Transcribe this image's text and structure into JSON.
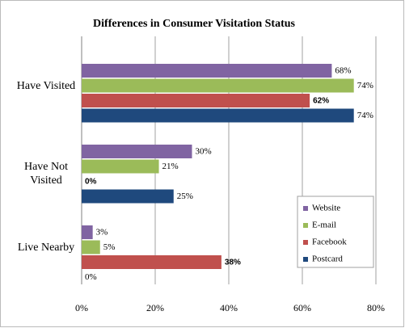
{
  "chart_data": {
    "type": "bar",
    "orientation": "horizontal",
    "title": "Differences in Consumer Visitation Status",
    "categories": [
      "Have Visited",
      "Have Not Visited",
      "Live Nearby"
    ],
    "series": [
      {
        "name": "Website",
        "color": "#8064a2",
        "values": [
          68,
          30,
          3
        ],
        "value_labels": [
          "68%",
          "30%",
          "3%"
        ]
      },
      {
        "name": "E-mail",
        "color": "#9bbb59",
        "values": [
          74,
          21,
          5
        ],
        "value_labels": [
          "74%",
          "21%",
          "5%"
        ]
      },
      {
        "name": "Facebook",
        "color": "#c0504d",
        "values": [
          62,
          0,
          38
        ],
        "value_labels": [
          "62%",
          "0%",
          "38%"
        ]
      },
      {
        "name": "Postcard",
        "color": "#1f497d",
        "values": [
          74,
          25,
          0
        ],
        "value_labels": [
          "74%",
          "25%",
          "0%"
        ]
      }
    ],
    "xlim": [
      0,
      80
    ],
    "xticks": [
      {
        "value": 0,
        "label": "0%"
      },
      {
        "value": 20,
        "label": "20%"
      },
      {
        "value": 40,
        "label": "40%"
      },
      {
        "value": 60,
        "label": "60%"
      },
      {
        "value": 80,
        "label": "80%"
      }
    ],
    "grid": true,
    "legend": "lower right"
  }
}
